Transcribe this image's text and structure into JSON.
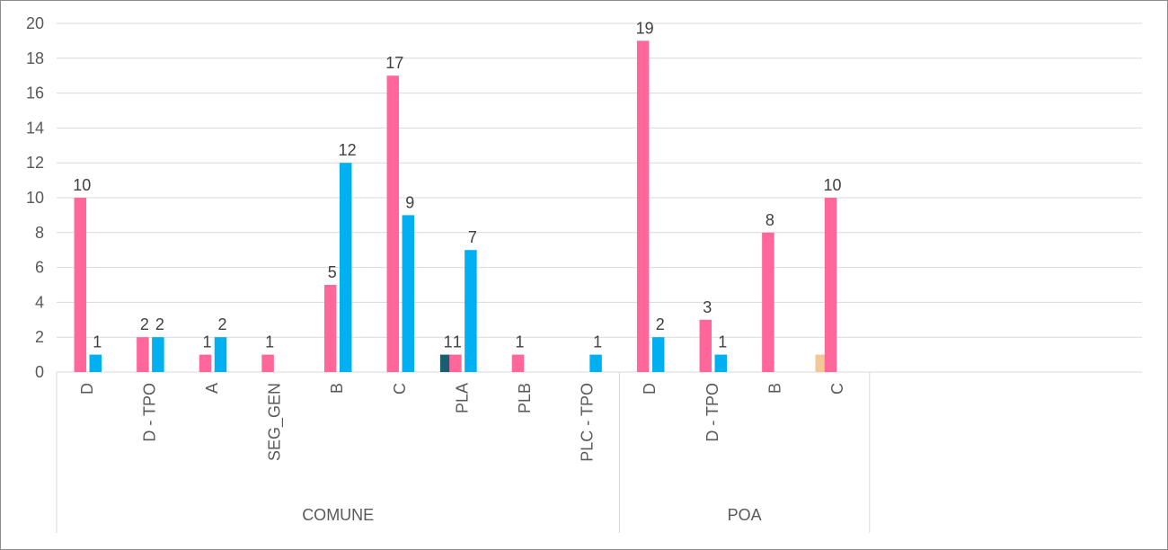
{
  "chart_data": {
    "type": "bar",
    "ylim": [
      0,
      20
    ],
    "yticks": [
      0,
      2,
      4,
      6,
      8,
      10,
      12,
      14,
      16,
      18,
      20
    ],
    "grid": true,
    "colors": {
      "dark_teal": "#1a5e72",
      "pink": "#ff6699",
      "blue": "#00b0f0",
      "tan": "#f2c894"
    },
    "groups": [
      {
        "label": "COMUNE",
        "categories": [
          {
            "label": "D",
            "bars": [
              {
                "color": "pink",
                "value": 10
              },
              {
                "color": "blue",
                "value": 1
              }
            ]
          },
          {
            "label": "D - TPO",
            "bars": [
              {
                "color": "pink",
                "value": 2
              },
              {
                "color": "blue",
                "value": 2
              }
            ]
          },
          {
            "label": "A",
            "bars": [
              {
                "color": "pink",
                "value": 1
              },
              {
                "color": "blue",
                "value": 2
              }
            ]
          },
          {
            "label": "SEG_GEN",
            "bars": [
              {
                "color": "pink",
                "value": 1
              }
            ]
          },
          {
            "label": "B",
            "bars": [
              {
                "color": "pink",
                "value": 5
              },
              {
                "color": "blue",
                "value": 12
              }
            ]
          },
          {
            "label": "C",
            "bars": [
              {
                "color": "pink",
                "value": 17
              },
              {
                "color": "blue",
                "value": 9
              }
            ]
          },
          {
            "label": "PLA",
            "bars": [
              {
                "color": "dark_teal",
                "value": 1
              },
              {
                "color": "pink",
                "value": 1
              },
              {
                "color": "blue",
                "value": 7
              }
            ]
          },
          {
            "label": "PLB",
            "bars": [
              {
                "color": "pink",
                "value": 1
              }
            ]
          },
          {
            "label": "PLC - TPO",
            "bars": [
              {
                "color": "blue",
                "value": 1
              }
            ]
          }
        ]
      },
      {
        "label": "POA",
        "categories": [
          {
            "label": "D",
            "bars": [
              {
                "color": "pink",
                "value": 19
              },
              {
                "color": "blue",
                "value": 2
              }
            ]
          },
          {
            "label": "D - TPO",
            "bars": [
              {
                "color": "pink",
                "value": 3
              },
              {
                "color": "blue",
                "value": 1
              }
            ]
          },
          {
            "label": "B",
            "bars": [
              {
                "color": "pink",
                "value": 8
              }
            ]
          },
          {
            "label": "C",
            "bars": [
              {
                "color": "tan",
                "value": 1,
                "label": false
              },
              {
                "color": "pink",
                "value": 10
              }
            ]
          }
        ]
      }
    ]
  }
}
